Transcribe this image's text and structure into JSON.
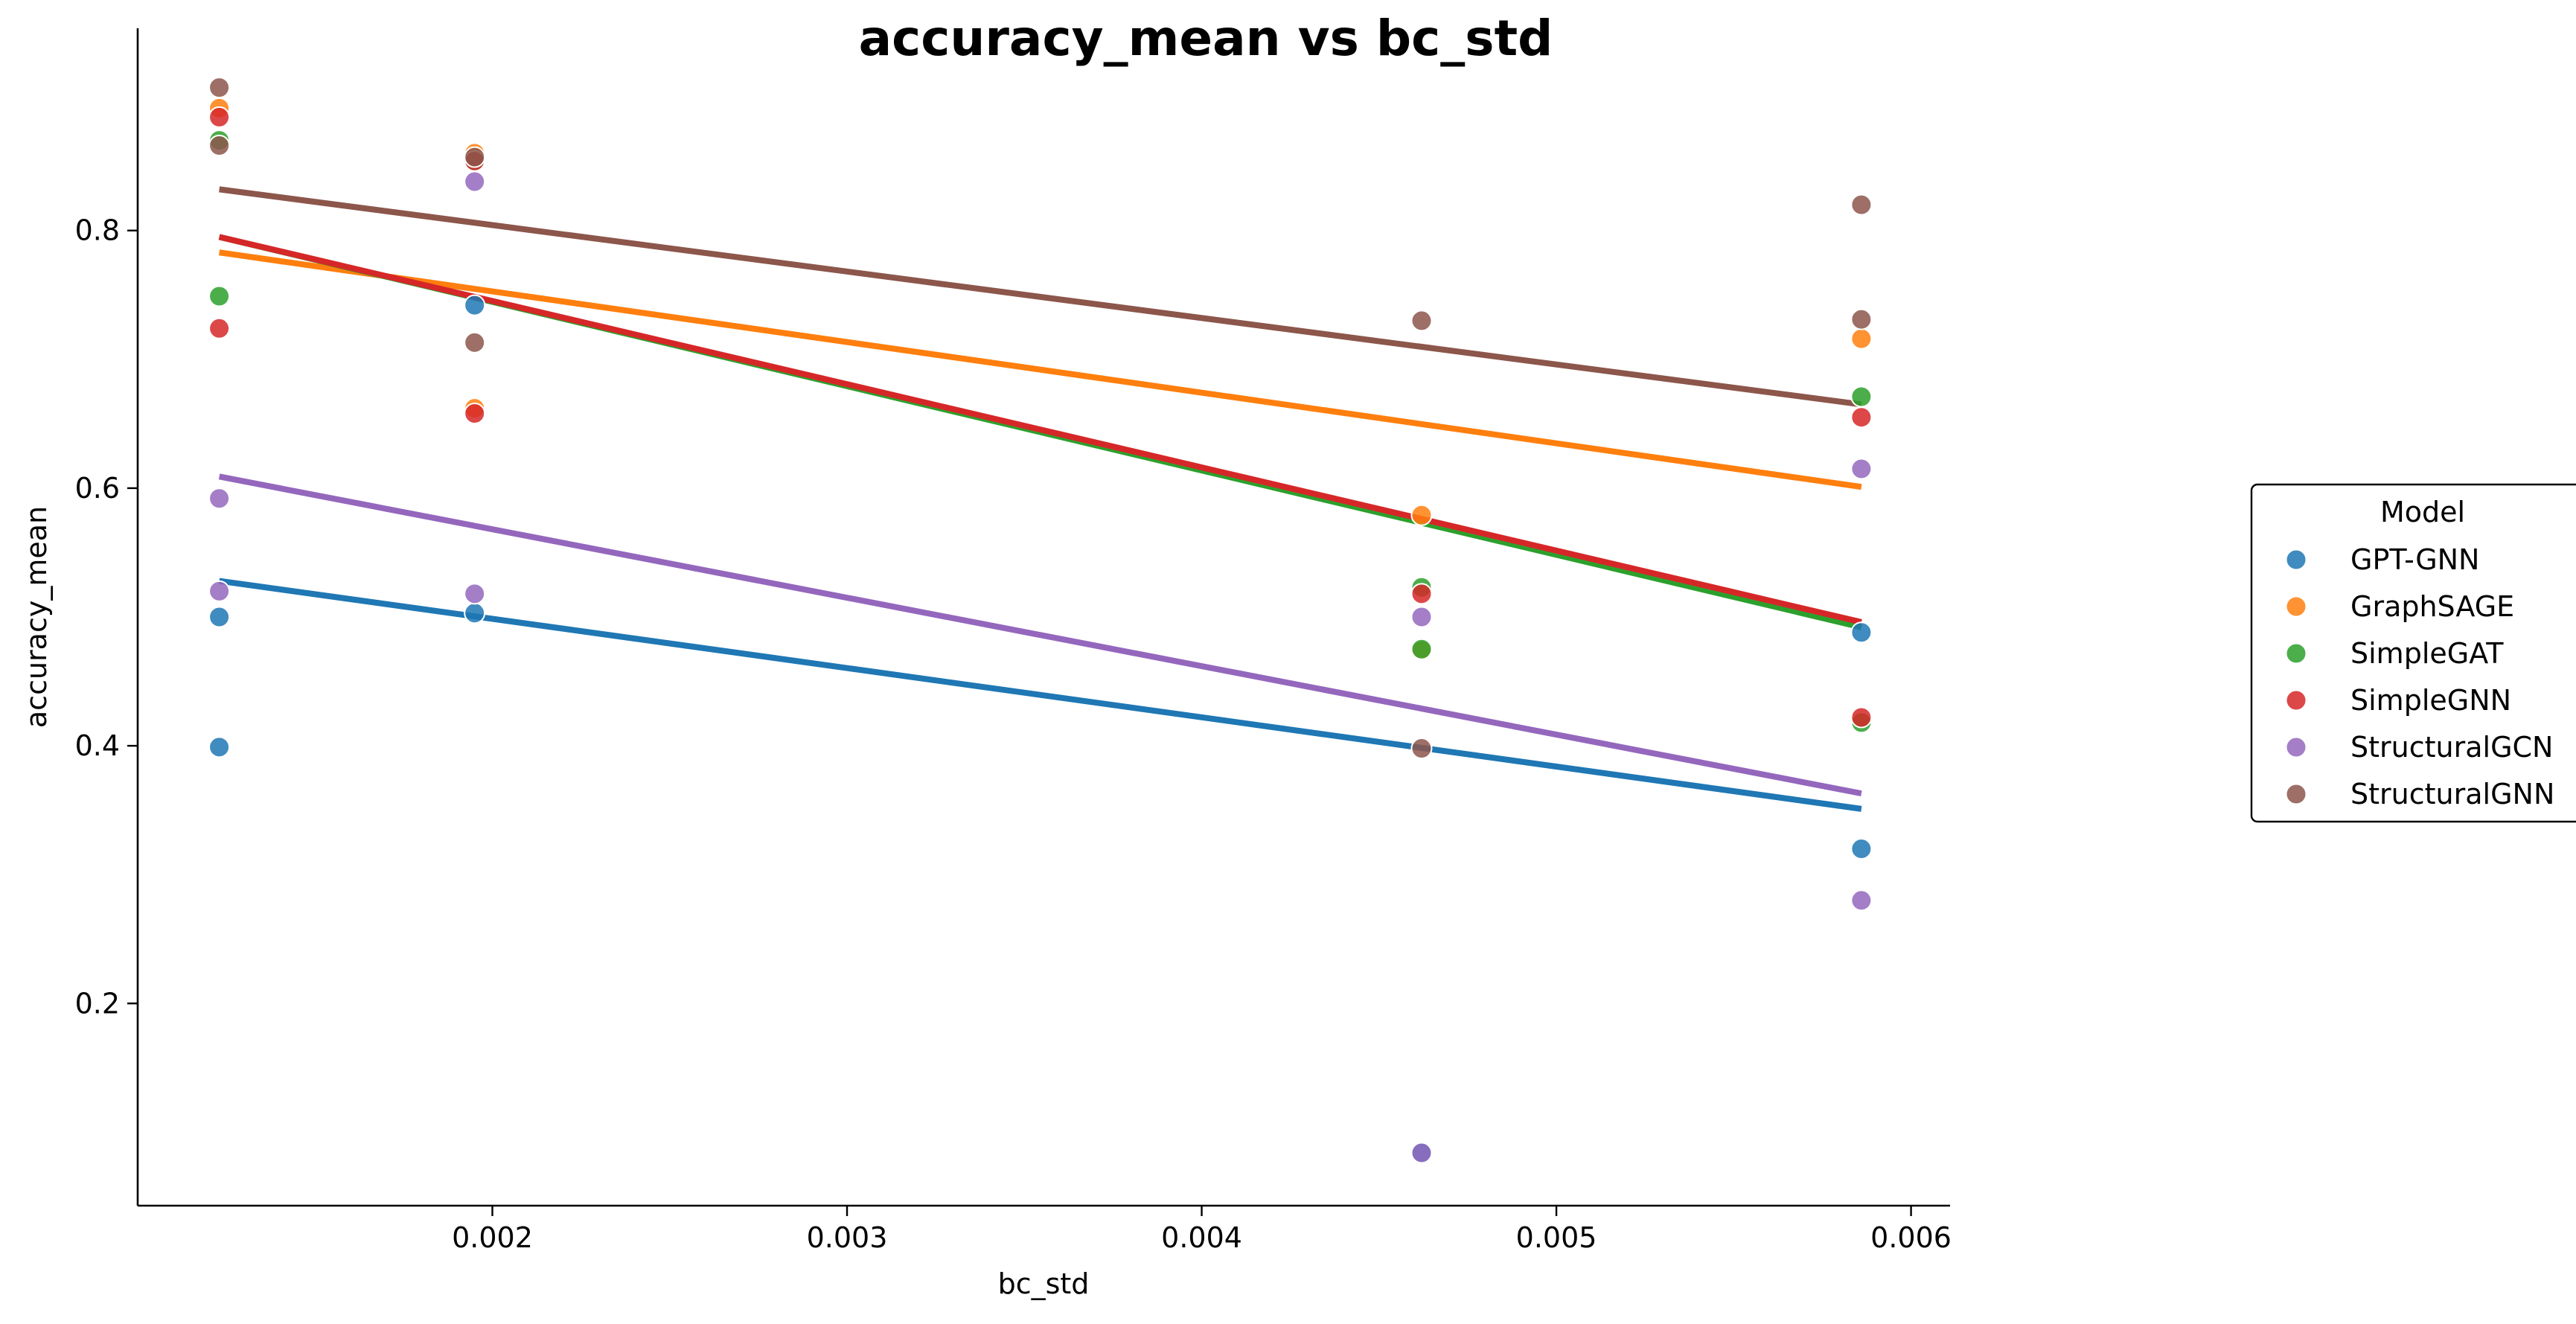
{
  "chart_data": {
    "type": "scatter",
    "title": "accuracy_mean vs bc_std",
    "xlabel": "bc_std",
    "ylabel": "accuracy_mean",
    "xlim": [
      0.001,
      0.00611
    ],
    "ylim": [
      0.043,
      0.957
    ],
    "xticks": [
      0.002,
      0.003,
      0.004,
      0.005,
      0.006
    ],
    "xtick_labels": [
      "0.002",
      "0.003",
      "0.004",
      "0.005",
      "0.006"
    ],
    "yticks": [
      0.2,
      0.4,
      0.6,
      0.8
    ],
    "ytick_labels": [
      "0.2",
      "0.4",
      "0.6",
      "0.8"
    ],
    "grid": false,
    "legend": {
      "title": "Model",
      "placement": "center-right, outside plot"
    },
    "series": [
      {
        "name": "GPT-GNN",
        "color": "#1f77b4",
        "points": [
          [
            0.00123,
            0.5
          ],
          [
            0.00123,
            0.399
          ],
          [
            0.00195,
            0.742
          ],
          [
            0.00195,
            0.503
          ],
          [
            0.00462,
            0.084
          ],
          [
            0.00586,
            0.488
          ],
          [
            0.00586,
            0.32
          ]
        ],
        "trend": [
          [
            0.00123,
            0.528
          ],
          [
            0.00586,
            0.351
          ]
        ]
      },
      {
        "name": "GraphSAGE",
        "color": "#ff7f0e",
        "points": [
          [
            0.00123,
            0.895
          ],
          [
            0.00195,
            0.86
          ],
          [
            0.00195,
            0.662
          ],
          [
            0.00462,
            0.579
          ],
          [
            0.00462,
            0.474
          ],
          [
            0.00586,
            0.716
          ]
        ],
        "trend": [
          [
            0.00123,
            0.783
          ],
          [
            0.00586,
            0.601
          ]
        ]
      },
      {
        "name": "SimpleGAT",
        "color": "#2ca02c",
        "points": [
          [
            0.00123,
            0.749
          ],
          [
            0.00123,
            0.87
          ],
          [
            0.00195,
            0.853
          ],
          [
            0.00462,
            0.523
          ],
          [
            0.00462,
            0.475
          ],
          [
            0.00586,
            0.671
          ],
          [
            0.00586,
            0.418
          ]
        ],
        "trend": [
          [
            0.00123,
            0.795
          ],
          [
            0.00586,
            0.492
          ]
        ]
      },
      {
        "name": "SimpleGNN",
        "color": "#d62728",
        "points": [
          [
            0.00123,
            0.724
          ],
          [
            0.00123,
            0.888
          ],
          [
            0.00195,
            0.658
          ],
          [
            0.00195,
            0.854
          ],
          [
            0.00462,
            0.518
          ],
          [
            0.00586,
            0.655
          ],
          [
            0.00586,
            0.422
          ]
        ],
        "trend": [
          [
            0.00123,
            0.795
          ],
          [
            0.00586,
            0.496
          ]
        ]
      },
      {
        "name": "StructuralGCN",
        "color": "#9467bd",
        "points": [
          [
            0.00123,
            0.592
          ],
          [
            0.00123,
            0.52
          ],
          [
            0.00195,
            0.838
          ],
          [
            0.00195,
            0.518
          ],
          [
            0.00462,
            0.5
          ],
          [
            0.00462,
            0.084
          ],
          [
            0.00586,
            0.615
          ],
          [
            0.00586,
            0.28
          ]
        ],
        "trend": [
          [
            0.00123,
            0.609
          ],
          [
            0.00586,
            0.363
          ]
        ]
      },
      {
        "name": "StructuralGNN",
        "color": "#8c564b",
        "points": [
          [
            0.00123,
            0.911
          ],
          [
            0.00123,
            0.866
          ],
          [
            0.00195,
            0.857
          ],
          [
            0.00195,
            0.713
          ],
          [
            0.00462,
            0.73
          ],
          [
            0.00462,
            0.398
          ],
          [
            0.00586,
            0.82
          ],
          [
            0.00586,
            0.731
          ]
        ],
        "trend": [
          [
            0.00123,
            0.832
          ],
          [
            0.00586,
            0.665
          ]
        ]
      }
    ]
  }
}
